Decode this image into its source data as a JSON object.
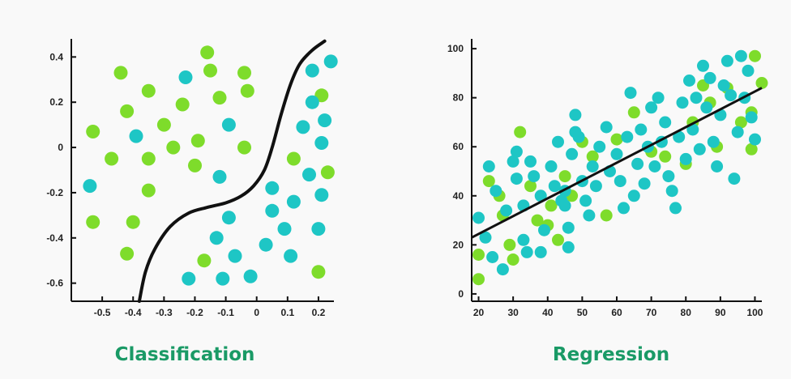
{
  "colors": {
    "green": "#7edc2b",
    "teal": "#1ec6c5",
    "curve": "#111111",
    "title": "#1a9a66",
    "background": "#f9f9f9"
  },
  "chart_data": [
    {
      "type": "scatter",
      "title": "Classification",
      "xlabel": "",
      "ylabel": "",
      "xlim": [
        -0.6,
        0.25
      ],
      "ylim": [
        -0.68,
        0.48
      ],
      "xticks": [
        -0.5,
        -0.4,
        -0.3,
        -0.2,
        -0.1,
        0,
        0.1,
        0.2
      ],
      "xtick_labels": [
        "-0.5",
        "-0.4",
        "-0.3",
        "-0.2",
        "-0.1",
        "0",
        "0.1",
        "0.2"
      ],
      "yticks": [
        0.4,
        0.2,
        0,
        -0.2,
        -0.4,
        -0.6
      ],
      "ytick_labels": [
        "0.4",
        "0.2",
        "0",
        "-0.2",
        "-0.4",
        "-0.6"
      ],
      "grid": false,
      "series": [
        {
          "color": "green",
          "points": [
            [
              -0.16,
              0.42
            ],
            [
              -0.44,
              0.33
            ],
            [
              -0.15,
              0.34
            ],
            [
              -0.04,
              0.33
            ],
            [
              -0.35,
              0.25
            ],
            [
              -0.03,
              0.25
            ],
            [
              -0.12,
              0.22
            ],
            [
              -0.24,
              0.19
            ],
            [
              -0.42,
              0.16
            ],
            [
              -0.3,
              0.1
            ],
            [
              -0.53,
              0.07
            ],
            [
              -0.19,
              0.03
            ],
            [
              -0.27,
              0.0
            ],
            [
              -0.04,
              0.0
            ],
            [
              -0.47,
              -0.05
            ],
            [
              -0.35,
              -0.05
            ],
            [
              -0.2,
              -0.08
            ],
            [
              -0.35,
              -0.19
            ],
            [
              -0.53,
              -0.33
            ],
            [
              -0.4,
              -0.33
            ],
            [
              -0.42,
              -0.47
            ],
            [
              -0.17,
              -0.5
            ],
            [
              0.12,
              -0.05
            ],
            [
              0.23,
              -0.11
            ],
            [
              0.21,
              0.23
            ],
            [
              0.2,
              -0.55
            ]
          ]
        },
        {
          "color": "teal",
          "points": [
            [
              0.24,
              0.38
            ],
            [
              0.18,
              0.34
            ],
            [
              -0.23,
              0.31
            ],
            [
              0.18,
              0.2
            ],
            [
              0.22,
              0.12
            ],
            [
              -0.09,
              0.1
            ],
            [
              0.15,
              0.09
            ],
            [
              -0.39,
              0.05
            ],
            [
              0.21,
              0.02
            ],
            [
              -0.12,
              -0.13
            ],
            [
              0.17,
              -0.12
            ],
            [
              -0.54,
              -0.17
            ],
            [
              0.05,
              -0.18
            ],
            [
              0.21,
              -0.21
            ],
            [
              0.12,
              -0.24
            ],
            [
              0.05,
              -0.28
            ],
            [
              -0.09,
              -0.31
            ],
            [
              0.09,
              -0.36
            ],
            [
              0.2,
              -0.36
            ],
            [
              -0.13,
              -0.4
            ],
            [
              0.03,
              -0.43
            ],
            [
              -0.07,
              -0.48
            ],
            [
              0.11,
              -0.48
            ],
            [
              -0.22,
              -0.58
            ],
            [
              -0.11,
              -0.58
            ],
            [
              -0.02,
              -0.57
            ]
          ]
        }
      ],
      "boundary": [
        [
          -0.38,
          -0.68
        ],
        [
          -0.36,
          -0.55
        ],
        [
          -0.33,
          -0.45
        ],
        [
          -0.28,
          -0.35
        ],
        [
          -0.22,
          -0.29
        ],
        [
          -0.16,
          -0.265
        ],
        [
          -0.1,
          -0.245
        ],
        [
          -0.05,
          -0.215
        ],
        [
          -0.01,
          -0.17
        ],
        [
          0.025,
          -0.1
        ],
        [
          0.05,
          0.0
        ],
        [
          0.08,
          0.15
        ],
        [
          0.11,
          0.28
        ],
        [
          0.14,
          0.37
        ],
        [
          0.18,
          0.43
        ],
        [
          0.22,
          0.47
        ]
      ]
    },
    {
      "type": "scatter",
      "title": "Regression",
      "xlabel": "",
      "ylabel": "",
      "xlim": [
        18,
        102
      ],
      "ylim": [
        -3,
        104
      ],
      "xticks": [
        20,
        30,
        40,
        50,
        60,
        70,
        80,
        90,
        100
      ],
      "xtick_labels": [
        "20",
        "30",
        "40",
        "50",
        "60",
        "70",
        "80",
        "90",
        "100"
      ],
      "yticks": [
        0,
        20,
        40,
        60,
        80,
        100
      ],
      "ytick_labels": [
        "0",
        "20",
        "40",
        "60",
        "80",
        "100"
      ],
      "grid": false,
      "series": [
        {
          "color": "green",
          "points": [
            [
              20,
              6
            ],
            [
              20,
              16
            ],
            [
              23,
              46
            ],
            [
              26,
              40
            ],
            [
              27,
              32
            ],
            [
              29,
              20
            ],
            [
              30,
              14
            ],
            [
              32,
              66
            ],
            [
              35,
              44
            ],
            [
              37,
              30
            ],
            [
              40,
              28
            ],
            [
              41,
              36
            ],
            [
              43,
              22
            ],
            [
              45,
              48
            ],
            [
              47,
              40
            ],
            [
              50,
              62
            ],
            [
              53,
              56
            ],
            [
              57,
              32
            ],
            [
              60,
              63
            ],
            [
              65,
              74
            ],
            [
              70,
              58
            ],
            [
              74,
              56
            ],
            [
              80,
              53
            ],
            [
              82,
              70
            ],
            [
              85,
              85
            ],
            [
              87,
              78
            ],
            [
              89,
              60
            ],
            [
              92,
              84
            ],
            [
              96,
              70
            ],
            [
              99,
              59
            ],
            [
              100,
              97
            ],
            [
              102,
              86
            ],
            [
              99,
              74
            ]
          ]
        },
        {
          "color": "teal",
          "points": [
            [
              20,
              31
            ],
            [
              22,
              23
            ],
            [
              23,
              52
            ],
            [
              24,
              15
            ],
            [
              25,
              42
            ],
            [
              27,
              10
            ],
            [
              28,
              34
            ],
            [
              30,
              54
            ],
            [
              31,
              47
            ],
            [
              31,
              58
            ],
            [
              33,
              36
            ],
            [
              33,
              22
            ],
            [
              34,
              17
            ],
            [
              35,
              54
            ],
            [
              36,
              48
            ],
            [
              38,
              40
            ],
            [
              38,
              17
            ],
            [
              39,
              26
            ],
            [
              41,
              52
            ],
            [
              42,
              44
            ],
            [
              43,
              62
            ],
            [
              44,
              38
            ],
            [
              45,
              42
            ],
            [
              45,
              36
            ],
            [
              46,
              19
            ],
            [
              46,
              27
            ],
            [
              47,
              57
            ],
            [
              48,
              66
            ],
            [
              48,
              73
            ],
            [
              49,
              64
            ],
            [
              50,
              46
            ],
            [
              51,
              38
            ],
            [
              52,
              32
            ],
            [
              53,
              52
            ],
            [
              54,
              44
            ],
            [
              55,
              60
            ],
            [
              57,
              68
            ],
            [
              58,
              50
            ],
            [
              60,
              57
            ],
            [
              61,
              46
            ],
            [
              62,
              35
            ],
            [
              63,
              64
            ],
            [
              64,
              82
            ],
            [
              65,
              40
            ],
            [
              66,
              53
            ],
            [
              67,
              67
            ],
            [
              68,
              45
            ],
            [
              69,
              60
            ],
            [
              70,
              76
            ],
            [
              71,
              52
            ],
            [
              72,
              80
            ],
            [
              73,
              62
            ],
            [
              74,
              70
            ],
            [
              75,
              48
            ],
            [
              76,
              42
            ],
            [
              77,
              35
            ],
            [
              78,
              64
            ],
            [
              79,
              78
            ],
            [
              80,
              55
            ],
            [
              81,
              87
            ],
            [
              82,
              67
            ],
            [
              83,
              80
            ],
            [
              84,
              59
            ],
            [
              85,
              93
            ],
            [
              86,
              76
            ],
            [
              87,
              88
            ],
            [
              88,
              62
            ],
            [
              89,
              52
            ],
            [
              90,
              73
            ],
            [
              91,
              85
            ],
            [
              92,
              95
            ],
            [
              93,
              81
            ],
            [
              94,
              47
            ],
            [
              95,
              66
            ],
            [
              96,
              97
            ],
            [
              97,
              80
            ],
            [
              98,
              91
            ],
            [
              99,
              72
            ],
            [
              100,
              63
            ]
          ]
        }
      ],
      "regression_line": [
        [
          18,
          23
        ],
        [
          102,
          84
        ]
      ]
    }
  ]
}
